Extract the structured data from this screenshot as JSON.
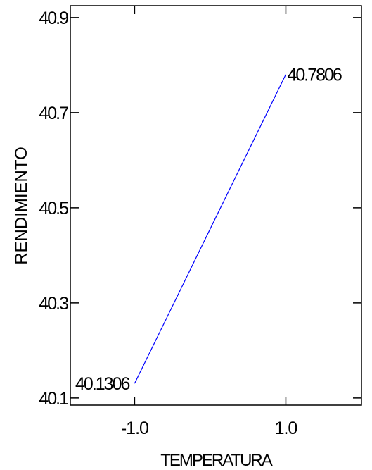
{
  "chart_data": {
    "type": "line",
    "title": "",
    "xlabel": "TEMPERATURA",
    "ylabel": "RENDIMIENTO",
    "xlim": [
      -1.85,
      2.0
    ],
    "ylim": [
      40.085,
      40.925
    ],
    "xticks": [
      -1.0,
      1.0
    ],
    "xtick_labels": [
      "-1.0",
      "1.0"
    ],
    "yticks": [
      40.1,
      40.3,
      40.5,
      40.7,
      40.9
    ],
    "ytick_labels": [
      "40.1",
      "40.3",
      "40.5",
      "40.7",
      "40.9"
    ],
    "grid": false,
    "legend": "none",
    "series": [
      {
        "color": "#0000ff",
        "x": [
          -1.0,
          -0.5,
          0.0,
          0.5,
          1.0
        ],
        "y": [
          40.1306,
          40.2931,
          40.4556,
          40.6181,
          40.7806
        ]
      }
    ],
    "annotations": [
      {
        "text": "40.1306",
        "x": -1.0,
        "y": 40.1306,
        "anchor": "end"
      },
      {
        "text": "40.7806",
        "x": 1.0,
        "y": 40.7806,
        "anchor": "start"
      }
    ]
  }
}
